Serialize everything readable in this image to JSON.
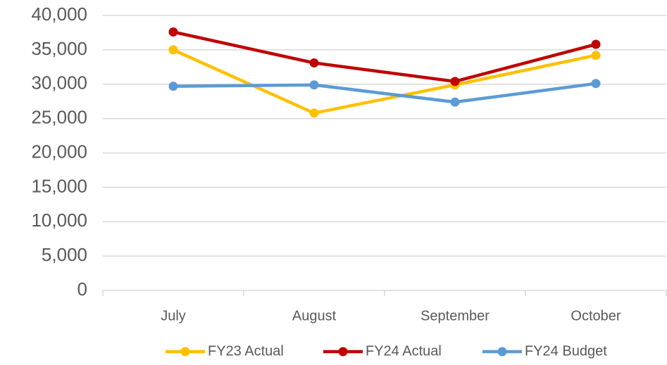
{
  "chart_data": {
    "type": "line",
    "categories": [
      "July",
      "August",
      "September",
      "October"
    ],
    "series": [
      {
        "name": "FY23 Actual",
        "color": "#ffc000",
        "values": [
          35000,
          25800,
          29900,
          34200
        ]
      },
      {
        "name": "FY24 Actual",
        "color": "#c00000",
        "values": [
          37600,
          33100,
          30400,
          35800
        ]
      },
      {
        "name": "FY24 Budget",
        "color": "#5b9bd5",
        "values": [
          29700,
          29900,
          27400,
          30100
        ]
      }
    ],
    "ylim": [
      0,
      40000
    ],
    "yticks": [
      0,
      {
        "value": 5000,
        "label": "5,000"
      },
      {
        "value": 10000,
        "label": "10,000"
      },
      {
        "value": 15000,
        "label": "15,000"
      },
      {
        "value": 20000,
        "label": "20,000"
      },
      {
        "value": 25000,
        "label": "25,000"
      },
      {
        "value": 30000,
        "label": "30,000"
      },
      {
        "value": 35000,
        "label": "35,000"
      },
      {
        "value": 40000,
        "label": "40,000"
      }
    ],
    "grid": true
  }
}
